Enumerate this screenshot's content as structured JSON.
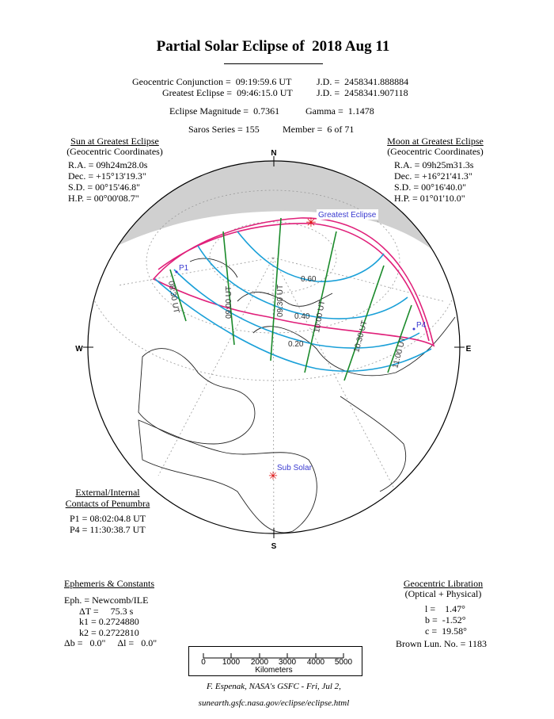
{
  "title": "Partial Solar Eclipse of  2018 Aug 11",
  "header": {
    "conjunction": "Geocentric Conjunction =  09:19:59.6 UT",
    "conjunction_jd": "J.D. =  2458341.888884",
    "greatest": "Greatest Eclipse =  09:46:15.0 UT",
    "greatest_jd": "J.D. =  2458341.907118",
    "magnitude": "Eclipse Magnitude =  0.7361",
    "gamma": "Gamma =  1.1478",
    "saros": "Saros Series = 155",
    "member": "Member =  6 of 71"
  },
  "sun": {
    "heading": "Sun at Greatest Eclipse",
    "sub": "(Geocentric Coordinates)",
    "ra": "R.A. = 09h24m28.0s",
    "dec": "Dec. = +15°13'19.3\"",
    "sd": "S.D. = 00°15'46.8\"",
    "hp": "H.P. = 00°00'08.7\""
  },
  "moon": {
    "heading": "Moon at Greatest Eclipse",
    "sub": "(Geocentric Coordinates)",
    "ra": "R.A. = 09h25m31.3s",
    "dec": "Dec. = +16°21'41.3\"",
    "sd": "S.D. = 00°16'40.0\"",
    "hp": "H.P. = 01°01'10.0\""
  },
  "contacts": {
    "heading1": "External/Internal",
    "heading2": "Contacts of Penumbra",
    "p1": "P1 = 08:02:04.8 UT",
    "p4": "P4 = 11:30:38.7 UT"
  },
  "ephemeris": {
    "heading": "Ephemeris & Constants",
    "eph": "Eph. = Newcomb/ILE",
    "dt": "ΔT =     75.3 s",
    "k1": "k1 = 0.2724880",
    "k2": "k2 = 0.2722810",
    "db": "Δb =   0.0\"     Δl =   0.0\""
  },
  "libration": {
    "heading": "Geocentric Libration",
    "sub": "(Optical + Physical)",
    "l": "l =    1.47°",
    "b": "b =  -1.52°",
    "c": "c =  19.58°",
    "brown": "Brown Lun. No. = 1183"
  },
  "map": {
    "compass": {
      "n": "N",
      "s": "S",
      "e": "E",
      "w": "W"
    },
    "greatest_label": "Greatest Eclipse",
    "subsolar_label": "Sub Solar",
    "p1_label": "P1",
    "p4_label": "P4",
    "magnitude_labels": [
      "0.60",
      "0.40",
      "0.20"
    ],
    "time_labels": [
      "08:30 UT",
      "09:00 UT",
      "09:30 UT",
      "10:00 UT",
      "10:30 UT",
      "11:00 UT"
    ],
    "colors": {
      "limits": "#e0207a",
      "magnitude": "#1aa0d8",
      "time": "#1a8a2a",
      "night": "#c8c8c8",
      "labels": "#3a3ad0",
      "marker": "#e01010"
    }
  },
  "scale": {
    "ticks": [
      "0",
      "1000",
      "2000",
      "3000",
      "4000",
      "5000"
    ],
    "unit": "Kilometers"
  },
  "footer": {
    "credit": "F. Espenak, NASA's GSFC - Fri, Jul 2,",
    "url": "sunearth.gsfc.nasa.gov/eclipse/eclipse.html"
  }
}
